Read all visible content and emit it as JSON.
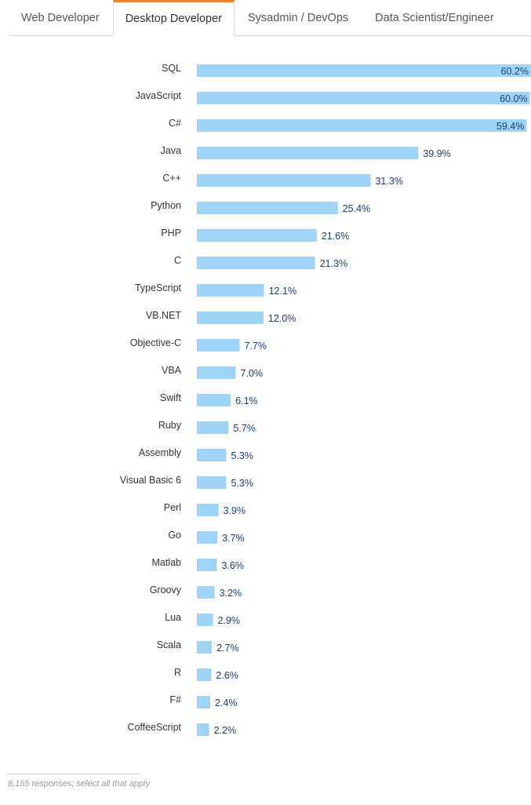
{
  "tabs": [
    {
      "label": "Web Developer",
      "active": false
    },
    {
      "label": "Desktop Developer",
      "active": true
    },
    {
      "label": "Sysadmin / DevOps",
      "active": false
    },
    {
      "label": "Data Scientist/Engineer",
      "active": false
    }
  ],
  "colors": {
    "accent": "#f48024",
    "bar": "#9fd4f7",
    "value_text": "#1b3f6b"
  },
  "chart_data": {
    "type": "bar",
    "orientation": "horizontal",
    "categories": [
      "SQL",
      "JavaScript",
      "C#",
      "Java",
      "C++",
      "Python",
      "PHP",
      "C",
      "TypeScript",
      "VB.NET",
      "Objective-C",
      "VBA",
      "Swift",
      "Ruby",
      "Assembly",
      "Visual Basic 6",
      "Perl",
      "Go",
      "Matlab",
      "Groovy",
      "Lua",
      "Scala",
      "R",
      "F#",
      "CoffeeScript"
    ],
    "values": [
      60.2,
      60.0,
      59.4,
      39.9,
      31.3,
      25.4,
      21.6,
      21.3,
      12.1,
      12.0,
      7.7,
      7.0,
      6.1,
      5.7,
      5.3,
      5.3,
      3.9,
      3.7,
      3.6,
      3.2,
      2.9,
      2.7,
      2.6,
      2.4,
      2.2
    ],
    "value_labels": [
      "60.2%",
      "60.0%",
      "59.4%",
      "39.9%",
      "31.3%",
      "25.4%",
      "21.6%",
      "21.3%",
      "12.1%",
      "12.0%",
      "7.7%",
      "7.0%",
      "6.1%",
      "5.7%",
      "5.3%",
      "5.3%",
      "3.9%",
      "3.7%",
      "3.6%",
      "3.2%",
      "2.9%",
      "2.7%",
      "2.6%",
      "2.4%",
      "2.2%"
    ],
    "unit": "%",
    "xlim": [
      0,
      60.2
    ],
    "grid": false,
    "legend": "none"
  },
  "footnote": "8,155 responses; select all that apply"
}
